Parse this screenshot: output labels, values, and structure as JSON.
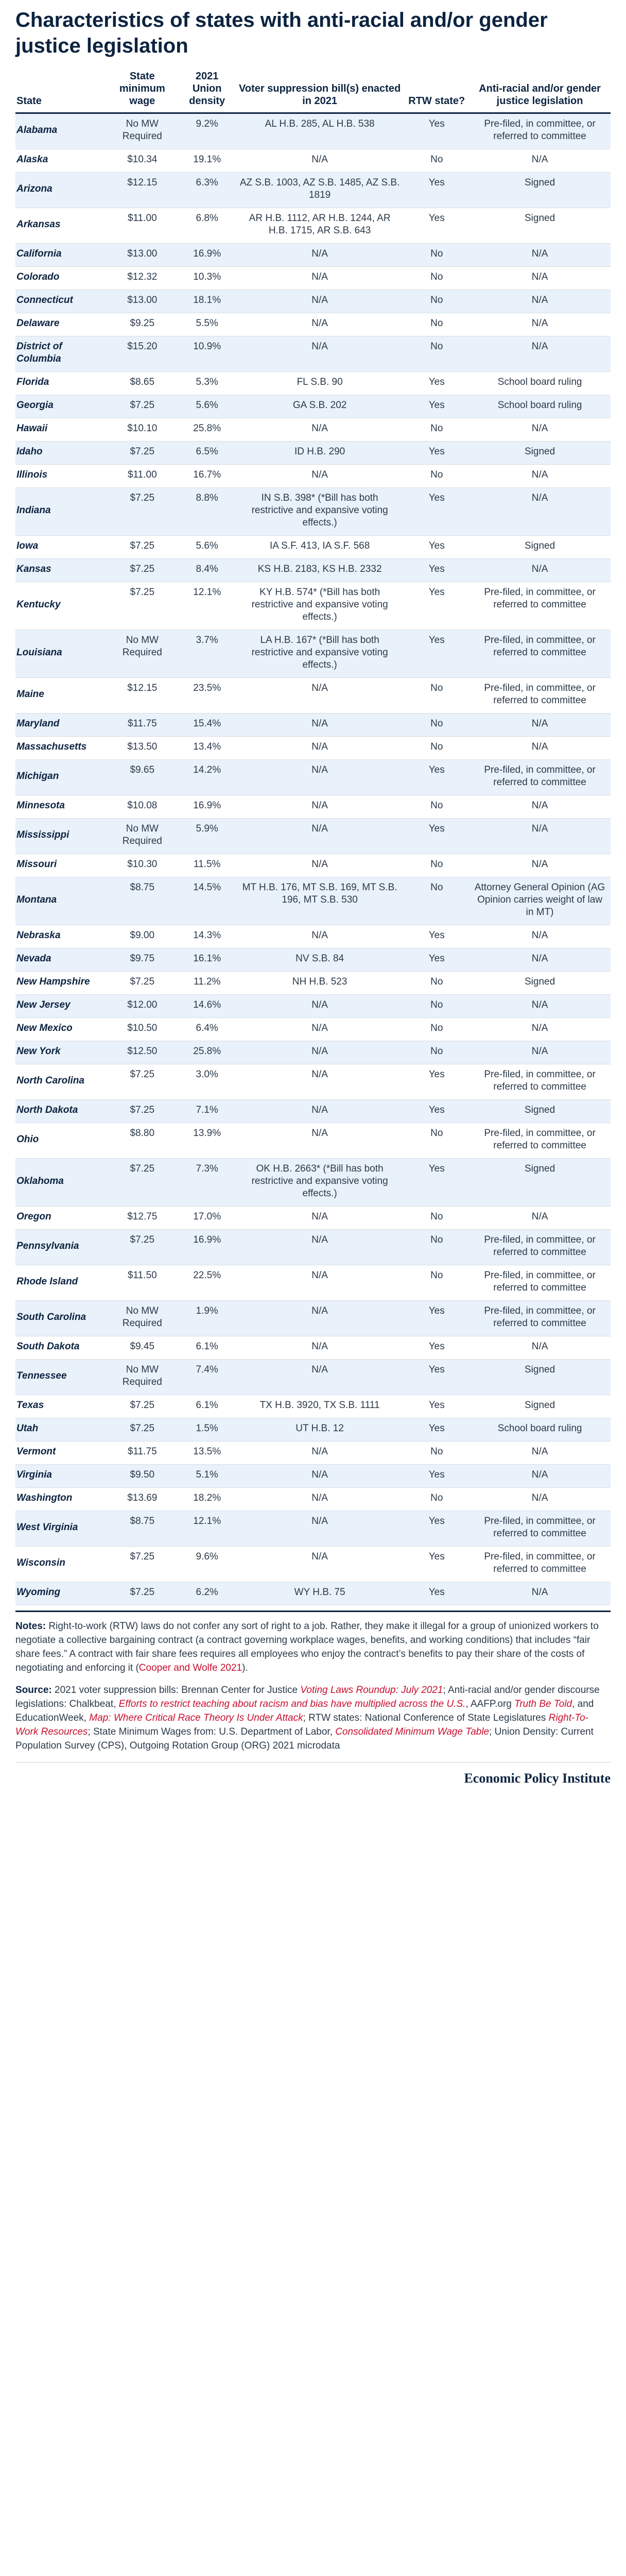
{
  "title": "Characteristics of states with anti-racial and/or gender justice legislation",
  "columns": {
    "state": "State",
    "min_wage": "State minimum wage",
    "union_density": "2021 Union density",
    "voter_bills": "Voter suppression bill(s) enacted in 2021",
    "rtw": "RTW state?",
    "legislation": "Anti-racial and/or gender justice legislation"
  },
  "rows": [
    {
      "state": "Alabama",
      "min_wage": "No MW Required",
      "union_density": "9.2%",
      "voter_bills": "AL H.B. 285, AL H.B. 538",
      "rtw": "Yes",
      "legislation": "Pre-filed, in committee, or referred to committee"
    },
    {
      "state": "Alaska",
      "min_wage": "$10.34",
      "union_density": "19.1%",
      "voter_bills": "N/A",
      "rtw": "No",
      "legislation": "N/A"
    },
    {
      "state": "Arizona",
      "min_wage": "$12.15",
      "union_density": "6.3%",
      "voter_bills": "AZ S.B. 1003, AZ S.B. 1485, AZ S.B. 1819",
      "rtw": "Yes",
      "legislation": "Signed"
    },
    {
      "state": "Arkansas",
      "min_wage": "$11.00",
      "union_density": "6.8%",
      "voter_bills": "AR H.B. 1112, AR H.B. 1244, AR H.B. 1715, AR S.B. 643",
      "rtw": "Yes",
      "legislation": "Signed"
    },
    {
      "state": "California",
      "min_wage": "$13.00",
      "union_density": "16.9%",
      "voter_bills": "N/A",
      "rtw": "No",
      "legislation": "N/A"
    },
    {
      "state": "Colorado",
      "min_wage": "$12.32",
      "union_density": "10.3%",
      "voter_bills": "N/A",
      "rtw": "No",
      "legislation": "N/A"
    },
    {
      "state": "Connecticut",
      "min_wage": "$13.00",
      "union_density": "18.1%",
      "voter_bills": "N/A",
      "rtw": "No",
      "legislation": "N/A"
    },
    {
      "state": "Delaware",
      "min_wage": "$9.25",
      "union_density": "5.5%",
      "voter_bills": "N/A",
      "rtw": "No",
      "legislation": "N/A"
    },
    {
      "state": "District of Columbia",
      "min_wage": "$15.20",
      "union_density": "10.9%",
      "voter_bills": "N/A",
      "rtw": "No",
      "legislation": "N/A"
    },
    {
      "state": "Florida",
      "min_wage": "$8.65",
      "union_density": "5.3%",
      "voter_bills": "FL S.B. 90",
      "rtw": "Yes",
      "legislation": "School board ruling"
    },
    {
      "state": "Georgia",
      "min_wage": "$7.25",
      "union_density": "5.6%",
      "voter_bills": "GA S.B. 202",
      "rtw": "Yes",
      "legislation": "School board ruling"
    },
    {
      "state": "Hawaii",
      "min_wage": "$10.10",
      "union_density": "25.8%",
      "voter_bills": "N/A",
      "rtw": "No",
      "legislation": "N/A"
    },
    {
      "state": "Idaho",
      "min_wage": "$7.25",
      "union_density": "6.5%",
      "voter_bills": "ID H.B. 290",
      "rtw": "Yes",
      "legislation": "Signed"
    },
    {
      "state": "Illinois",
      "min_wage": "$11.00",
      "union_density": "16.7%",
      "voter_bills": "N/A",
      "rtw": "No",
      "legislation": "N/A"
    },
    {
      "state": "Indiana",
      "min_wage": "$7.25",
      "union_density": "8.8%",
      "voter_bills": "IN S.B. 398* (*Bill has both restrictive and expansive voting effects.)",
      "rtw": "Yes",
      "legislation": "N/A"
    },
    {
      "state": "Iowa",
      "min_wage": "$7.25",
      "union_density": "5.6%",
      "voter_bills": "IA S.F. 413, IA S.F. 568",
      "rtw": "Yes",
      "legislation": "Signed"
    },
    {
      "state": "Kansas",
      "min_wage": "$7.25",
      "union_density": "8.4%",
      "voter_bills": "KS H.B. 2183, KS H.B. 2332",
      "rtw": "Yes",
      "legislation": "N/A"
    },
    {
      "state": "Kentucky",
      "min_wage": "$7.25",
      "union_density": "12.1%",
      "voter_bills": "KY H.B. 574* (*Bill has both restrictive and expansive voting effects.)",
      "rtw": "Yes",
      "legislation": "Pre-filed, in committee, or referred to committee"
    },
    {
      "state": "Louisiana",
      "min_wage": "No MW Required",
      "union_density": "3.7%",
      "voter_bills": "LA H.B. 167* (*Bill has both restrictive and expansive voting effects.)",
      "rtw": "Yes",
      "legislation": "Pre-filed, in committee, or referred to committee"
    },
    {
      "state": "Maine",
      "min_wage": "$12.15",
      "union_density": "23.5%",
      "voter_bills": "N/A",
      "rtw": "No",
      "legislation": "Pre-filed, in committee, or referred to committee"
    },
    {
      "state": "Maryland",
      "min_wage": "$11.75",
      "union_density": "15.4%",
      "voter_bills": "N/A",
      "rtw": "No",
      "legislation": "N/A"
    },
    {
      "state": "Massachusetts",
      "min_wage": "$13.50",
      "union_density": "13.4%",
      "voter_bills": "N/A",
      "rtw": "No",
      "legislation": "N/A"
    },
    {
      "state": "Michigan",
      "min_wage": "$9.65",
      "union_density": "14.2%",
      "voter_bills": "N/A",
      "rtw": "Yes",
      "legislation": "Pre-filed, in committee, or referred to committee"
    },
    {
      "state": "Minnesota",
      "min_wage": "$10.08",
      "union_density": "16.9%",
      "voter_bills": "N/A",
      "rtw": "No",
      "legislation": "N/A"
    },
    {
      "state": "Mississippi",
      "min_wage": "No MW Required",
      "union_density": "5.9%",
      "voter_bills": "N/A",
      "rtw": "Yes",
      "legislation": "N/A"
    },
    {
      "state": "Missouri",
      "min_wage": "$10.30",
      "union_density": "11.5%",
      "voter_bills": "N/A",
      "rtw": "No",
      "legislation": "N/A"
    },
    {
      "state": "Montana",
      "min_wage": "$8.75",
      "union_density": "14.5%",
      "voter_bills": "MT H.B. 176, MT S.B. 169, MT S.B. 196, MT S.B. 530",
      "rtw": "No",
      "legislation": "Attorney General Opinion (AG Opinion carries weight of law in MT)"
    },
    {
      "state": "Nebraska",
      "min_wage": "$9.00",
      "union_density": "14.3%",
      "voter_bills": "N/A",
      "rtw": "Yes",
      "legislation": "N/A"
    },
    {
      "state": "Nevada",
      "min_wage": "$9.75",
      "union_density": "16.1%",
      "voter_bills": "NV S.B. 84",
      "rtw": "Yes",
      "legislation": "N/A"
    },
    {
      "state": "New Hampshire",
      "min_wage": "$7.25",
      "union_density": "11.2%",
      "voter_bills": "NH H.B. 523",
      "rtw": "No",
      "legislation": "Signed"
    },
    {
      "state": "New Jersey",
      "min_wage": "$12.00",
      "union_density": "14.6%",
      "voter_bills": "N/A",
      "rtw": "No",
      "legislation": "N/A"
    },
    {
      "state": "New Mexico",
      "min_wage": "$10.50",
      "union_density": "6.4%",
      "voter_bills": "N/A",
      "rtw": "No",
      "legislation": "N/A"
    },
    {
      "state": "New York",
      "min_wage": "$12.50",
      "union_density": "25.8%",
      "voter_bills": "N/A",
      "rtw": "No",
      "legislation": "N/A"
    },
    {
      "state": "North Carolina",
      "min_wage": "$7.25",
      "union_density": "3.0%",
      "voter_bills": "N/A",
      "rtw": "Yes",
      "legislation": "Pre-filed, in committee, or referred to committee"
    },
    {
      "state": "North Dakota",
      "min_wage": "$7.25",
      "union_density": "7.1%",
      "voter_bills": "N/A",
      "rtw": "Yes",
      "legislation": "Signed"
    },
    {
      "state": "Ohio",
      "min_wage": "$8.80",
      "union_density": "13.9%",
      "voter_bills": "N/A",
      "rtw": "No",
      "legislation": "Pre-filed, in committee, or referred to committee"
    },
    {
      "state": "Oklahoma",
      "min_wage": "$7.25",
      "union_density": "7.3%",
      "voter_bills": "OK H.B. 2663* (*Bill has both restrictive and expansive voting effects.)",
      "rtw": "Yes",
      "legislation": "Signed"
    },
    {
      "state": "Oregon",
      "min_wage": "$12.75",
      "union_density": "17.0%",
      "voter_bills": "N/A",
      "rtw": "No",
      "legislation": "N/A"
    },
    {
      "state": "Pennsylvania",
      "min_wage": "$7.25",
      "union_density": "16.9%",
      "voter_bills": "N/A",
      "rtw": "No",
      "legislation": "Pre-filed, in committee, or referred to committee"
    },
    {
      "state": "Rhode Island",
      "min_wage": "$11.50",
      "union_density": "22.5%",
      "voter_bills": "N/A",
      "rtw": "No",
      "legislation": "Pre-filed, in committee, or referred to committee"
    },
    {
      "state": "South Carolina",
      "min_wage": "No MW Required",
      "union_density": "1.9%",
      "voter_bills": "N/A",
      "rtw": "Yes",
      "legislation": "Pre-filed, in committee, or referred to committee"
    },
    {
      "state": "South Dakota",
      "min_wage": "$9.45",
      "union_density": "6.1%",
      "voter_bills": "N/A",
      "rtw": "Yes",
      "legislation": "N/A"
    },
    {
      "state": "Tennessee",
      "min_wage": "No MW Required",
      "union_density": "7.4%",
      "voter_bills": "N/A",
      "rtw": "Yes",
      "legislation": "Signed"
    },
    {
      "state": "Texas",
      "min_wage": "$7.25",
      "union_density": "6.1%",
      "voter_bills": "TX H.B. 3920, TX S.B. 1111",
      "rtw": "Yes",
      "legislation": "Signed"
    },
    {
      "state": "Utah",
      "min_wage": "$7.25",
      "union_density": "1.5%",
      "voter_bills": "UT H.B. 12",
      "rtw": "Yes",
      "legislation": "School board ruling"
    },
    {
      "state": "Vermont",
      "min_wage": "$11.75",
      "union_density": "13.5%",
      "voter_bills": "N/A",
      "rtw": "No",
      "legislation": "N/A"
    },
    {
      "state": "Virginia",
      "min_wage": "$9.50",
      "union_density": "5.1%",
      "voter_bills": "N/A",
      "rtw": "Yes",
      "legislation": "N/A"
    },
    {
      "state": "Washington",
      "min_wage": "$13.69",
      "union_density": "18.2%",
      "voter_bills": "N/A",
      "rtw": "No",
      "legislation": "N/A"
    },
    {
      "state": "West Virginia",
      "min_wage": "$8.75",
      "union_density": "12.1%",
      "voter_bills": "N/A",
      "rtw": "Yes",
      "legislation": "Pre-filed, in committee, or referred to committee"
    },
    {
      "state": "Wisconsin",
      "min_wage": "$7.25",
      "union_density": "9.6%",
      "voter_bills": "N/A",
      "rtw": "Yes",
      "legislation": "Pre-filed, in committee, or referred to committee"
    },
    {
      "state": "Wyoming",
      "min_wage": "$7.25",
      "union_density": "6.2%",
      "voter_bills": "WY H.B. 75",
      "rtw": "Yes",
      "legislation": "N/A"
    }
  ],
  "notes": {
    "label": "Notes:",
    "text": "Right-to-work (RTW) laws do not confer any sort of right to a job. Rather, they make it illegal for a group of unionized workers to negotiate a collective bargaining contract (a contract governing workplace wages, benefits, and working conditions) that includes “fair share fees.” A contract with fair share fees requires all employees who enjoy the contract’s benefits to pay their share of the costs of negotiating and enforcing it (",
    "link": "Cooper and Wolfe 2021",
    "end": ")."
  },
  "source": {
    "label": "Source:",
    "s1": "2021 voter suppression bills: Brennan Center for Justice ",
    "l1": "Voting Laws Roundup: July 2021",
    "s2": "; Anti-racial and/or gender discourse legislations: Chalkbeat, ",
    "l2": "Efforts to restrict teaching about racism and bias have multiplied across the U.S.",
    "s3": ", AAFP.org ",
    "l3": "Truth Be Told",
    "s4": ", and EducationWeek, ",
    "l4": "Map: Where Critical Race Theory Is Under Attack",
    "s5": "; RTW states: National Conference of State Legislatures ",
    "l5": "Right-To-Work Resources",
    "s6": "; State Minimum Wages from: U.S. Department of Labor, ",
    "l6": "Consolidated Minimum Wage Table",
    "s7": "; Union Density: Current Population Survey (CPS), Outgoing Rotation Group (ORG) 2021 microdata"
  },
  "footer": "Economic Policy Institute"
}
